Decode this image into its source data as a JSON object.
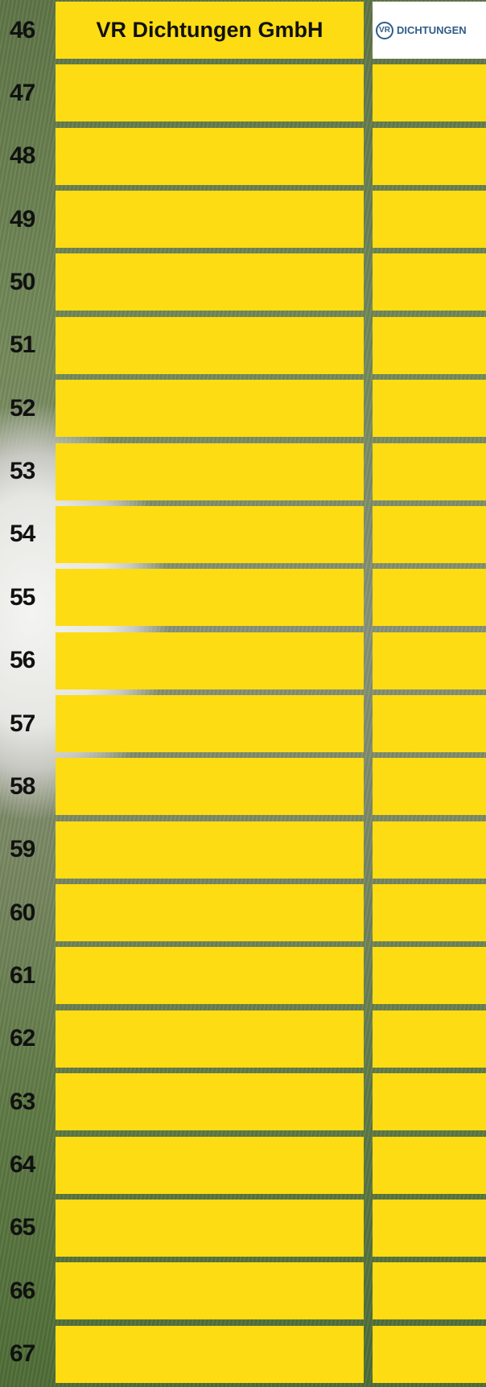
{
  "rows": [
    {
      "number": "46",
      "name": "VR Dichtungen GmbH",
      "logo": {
        "mark": "VR",
        "text": "DICHTUNGEN"
      }
    },
    {
      "number": "47"
    },
    {
      "number": "48"
    },
    {
      "number": "49"
    },
    {
      "number": "50"
    },
    {
      "number": "51"
    },
    {
      "number": "52"
    },
    {
      "number": "53"
    },
    {
      "number": "54"
    },
    {
      "number": "55"
    },
    {
      "number": "56"
    },
    {
      "number": "57"
    },
    {
      "number": "58"
    },
    {
      "number": "59"
    },
    {
      "number": "60"
    },
    {
      "number": "61"
    },
    {
      "number": "62"
    },
    {
      "number": "63"
    },
    {
      "number": "64"
    },
    {
      "number": "65"
    },
    {
      "number": "66"
    },
    {
      "number": "67"
    }
  ]
}
